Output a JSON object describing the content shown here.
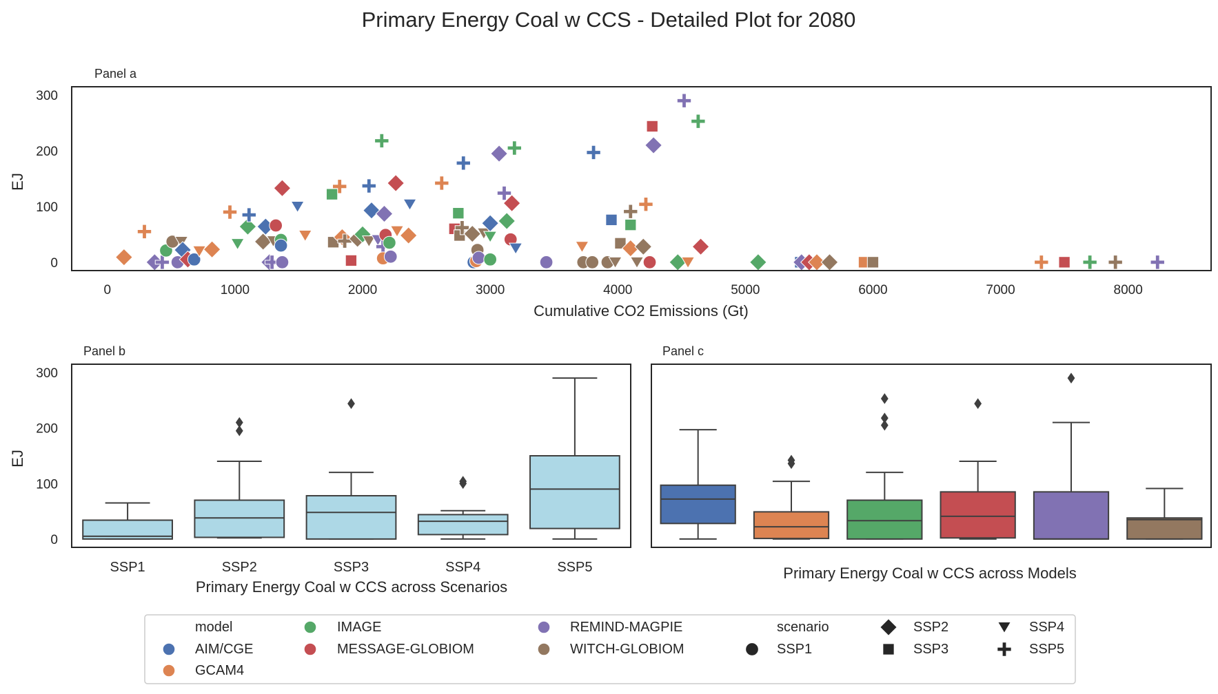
{
  "figure": {
    "title": "Primary Energy Coal w CCS - Detailed Plot for 2080"
  },
  "colors": {
    "AIM/CGE": "#4c72b0",
    "GCAM4": "#dd8452",
    "IMAGE": "#55a868",
    "MESSAGE-GLOBIOM": "#c44e52",
    "REMIND-MAGPIE": "#8172b3",
    "WITCH-GLOBIOM": "#937860",
    "scenario_box": "#add8e6"
  },
  "chart_data": [
    {
      "panel": "Panel a",
      "type": "scatter",
      "xlabel": "Cumulative CO2 Emissions (Gt)",
      "ylabel": "EJ",
      "xlim": [
        -280,
        8650
      ],
      "ylim": [
        -15,
        315
      ],
      "xticks": [
        0,
        1000,
        2000,
        3000,
        4000,
        5000,
        6000,
        7000,
        8000
      ],
      "yticks": [
        0,
        100,
        200,
        300
      ],
      "grid": false,
      "points": [
        {
          "x": 130,
          "y": 9,
          "model": "GCAM4",
          "scenario": "SSP2"
        },
        {
          "x": 290,
          "y": 55,
          "model": "GCAM4",
          "scenario": "SSP5"
        },
        {
          "x": 370,
          "y": 0,
          "model": "REMIND-MAGPIE",
          "scenario": "SSP2"
        },
        {
          "x": 430,
          "y": 0,
          "model": "REMIND-MAGPIE",
          "scenario": "SSP5"
        },
        {
          "x": 460,
          "y": 21,
          "model": "IMAGE",
          "scenario": "SSP1"
        },
        {
          "x": 510,
          "y": 37,
          "model": "WITCH-GLOBIOM",
          "scenario": "SSP1"
        },
        {
          "x": 550,
          "y": 0,
          "model": "REMIND-MAGPIE",
          "scenario": "SSP1"
        },
        {
          "x": 580,
          "y": 37,
          "model": "WITCH-GLOBIOM",
          "scenario": "SSP4"
        },
        {
          "x": 590,
          "y": 22,
          "model": "AIM/CGE",
          "scenario": "SSP2"
        },
        {
          "x": 630,
          "y": 5,
          "model": "MESSAGE-GLOBIOM",
          "scenario": "SSP2"
        },
        {
          "x": 680,
          "y": 5,
          "model": "AIM/CGE",
          "scenario": "SSP1"
        },
        {
          "x": 720,
          "y": 20,
          "model": "GCAM4",
          "scenario": "SSP4"
        },
        {
          "x": 820,
          "y": 23,
          "model": "GCAM4",
          "scenario": "SSP2"
        },
        {
          "x": 960,
          "y": 90,
          "model": "GCAM4",
          "scenario": "SSP5"
        },
        {
          "x": 1020,
          "y": 33,
          "model": "IMAGE",
          "scenario": "SSP4"
        },
        {
          "x": 1100,
          "y": 64,
          "model": "IMAGE",
          "scenario": "SSP2"
        },
        {
          "x": 1110,
          "y": 85,
          "model": "AIM/CGE",
          "scenario": "SSP5"
        },
        {
          "x": 1220,
          "y": 37,
          "model": "WITCH-GLOBIOM",
          "scenario": "SSP2"
        },
        {
          "x": 1240,
          "y": 64,
          "model": "AIM/CGE",
          "scenario": "SSP2"
        },
        {
          "x": 1270,
          "y": 0,
          "model": "REMIND-MAGPIE",
          "scenario": "SSP2"
        },
        {
          "x": 1290,
          "y": 0,
          "model": "REMIND-MAGPIE",
          "scenario": "SSP5"
        },
        {
          "x": 1300,
          "y": 38,
          "model": "WITCH-GLOBIOM",
          "scenario": "SSP4"
        },
        {
          "x": 1320,
          "y": 66,
          "model": "MESSAGE-GLOBIOM",
          "scenario": "SSP1"
        },
        {
          "x": 1360,
          "y": 40,
          "model": "IMAGE",
          "scenario": "SSP1"
        },
        {
          "x": 1360,
          "y": 30,
          "model": "AIM/CGE",
          "scenario": "SSP1"
        },
        {
          "x": 1370,
          "y": 0,
          "model": "REMIND-MAGPIE",
          "scenario": "SSP1"
        },
        {
          "x": 1370,
          "y": 133,
          "model": "MESSAGE-GLOBIOM",
          "scenario": "SSP2"
        },
        {
          "x": 1490,
          "y": 100,
          "model": "AIM/CGE",
          "scenario": "SSP4"
        },
        {
          "x": 1550,
          "y": 48,
          "model": "GCAM4",
          "scenario": "SSP4"
        },
        {
          "x": 1760,
          "y": 122,
          "model": "IMAGE",
          "scenario": "SSP3"
        },
        {
          "x": 1770,
          "y": 36,
          "model": "WITCH-GLOBIOM",
          "scenario": "SSP3"
        },
        {
          "x": 1820,
          "y": 136,
          "model": "GCAM4",
          "scenario": "SSP5"
        },
        {
          "x": 1840,
          "y": 45,
          "model": "GCAM4",
          "scenario": "SSP2"
        },
        {
          "x": 1860,
          "y": 38,
          "model": "WITCH-GLOBIOM",
          "scenario": "SSP5"
        },
        {
          "x": 1910,
          "y": 3,
          "model": "MESSAGE-GLOBIOM",
          "scenario": "SSP3"
        },
        {
          "x": 1960,
          "y": 42,
          "model": "WITCH-GLOBIOM",
          "scenario": "SSP2"
        },
        {
          "x": 2000,
          "y": 50,
          "model": "IMAGE",
          "scenario": "SSP2"
        },
        {
          "x": 2050,
          "y": 38,
          "model": "WITCH-GLOBIOM",
          "scenario": "SSP4"
        },
        {
          "x": 2050,
          "y": 137,
          "model": "AIM/CGE",
          "scenario": "SSP5"
        },
        {
          "x": 2070,
          "y": 93,
          "model": "AIM/CGE",
          "scenario": "SSP2"
        },
        {
          "x": 2120,
          "y": 40,
          "model": "REMIND-MAGPIE",
          "scenario": "SSP4"
        },
        {
          "x": 2150,
          "y": 218,
          "model": "IMAGE",
          "scenario": "SSP5"
        },
        {
          "x": 2160,
          "y": 28,
          "model": "REMIND-MAGPIE",
          "scenario": "SSP5"
        },
        {
          "x": 2160,
          "y": 7,
          "model": "GCAM4",
          "scenario": "SSP1"
        },
        {
          "x": 2170,
          "y": 87,
          "model": "REMIND-MAGPIE",
          "scenario": "SSP2"
        },
        {
          "x": 2180,
          "y": 49,
          "model": "MESSAGE-GLOBIOM",
          "scenario": "SSP1"
        },
        {
          "x": 2210,
          "y": 35,
          "model": "IMAGE",
          "scenario": "SSP1"
        },
        {
          "x": 2220,
          "y": 10,
          "model": "REMIND-MAGPIE",
          "scenario": "SSP1"
        },
        {
          "x": 2260,
          "y": 142,
          "model": "MESSAGE-GLOBIOM",
          "scenario": "SSP2"
        },
        {
          "x": 2270,
          "y": 56,
          "model": "GCAM4",
          "scenario": "SSP4"
        },
        {
          "x": 2360,
          "y": 48,
          "model": "GCAM4",
          "scenario": "SSP2"
        },
        {
          "x": 2370,
          "y": 104,
          "model": "AIM/CGE",
          "scenario": "SSP4"
        },
        {
          "x": 2620,
          "y": 142,
          "model": "GCAM4",
          "scenario": "SSP5"
        },
        {
          "x": 2720,
          "y": 60,
          "model": "MESSAGE-GLOBIOM",
          "scenario": "SSP3"
        },
        {
          "x": 2750,
          "y": 88,
          "model": "IMAGE",
          "scenario": "SSP3"
        },
        {
          "x": 2760,
          "y": 48,
          "model": "WITCH-GLOBIOM",
          "scenario": "SSP3"
        },
        {
          "x": 2780,
          "y": 62,
          "model": "WITCH-GLOBIOM",
          "scenario": "SSP5"
        },
        {
          "x": 2790,
          "y": 178,
          "model": "AIM/CGE",
          "scenario": "SSP5"
        },
        {
          "x": 2860,
          "y": 51,
          "model": "WITCH-GLOBIOM",
          "scenario": "SSP2"
        },
        {
          "x": 2870,
          "y": 0,
          "model": "AIM/CGE",
          "scenario": "SSP1"
        },
        {
          "x": 2890,
          "y": 2,
          "model": "GCAM4",
          "scenario": "SSP1"
        },
        {
          "x": 2900,
          "y": 22,
          "model": "WITCH-GLOBIOM",
          "scenario": "SSP1"
        },
        {
          "x": 2910,
          "y": 8,
          "model": "REMIND-MAGPIE",
          "scenario": "SSP1"
        },
        {
          "x": 2950,
          "y": 52,
          "model": "WITCH-GLOBIOM",
          "scenario": "SSP4"
        },
        {
          "x": 3000,
          "y": 70,
          "model": "AIM/CGE",
          "scenario": "SSP2"
        },
        {
          "x": 3000,
          "y": 5,
          "model": "IMAGE",
          "scenario": "SSP1"
        },
        {
          "x": 3000,
          "y": 46,
          "model": "IMAGE",
          "scenario": "SSP4"
        },
        {
          "x": 3070,
          "y": 195,
          "model": "REMIND-MAGPIE",
          "scenario": "SSP2"
        },
        {
          "x": 3110,
          "y": 124,
          "model": "REMIND-MAGPIE",
          "scenario": "SSP5"
        },
        {
          "x": 3130,
          "y": 74,
          "model": "IMAGE",
          "scenario": "SSP2"
        },
        {
          "x": 3160,
          "y": 41,
          "model": "MESSAGE-GLOBIOM",
          "scenario": "SSP1"
        },
        {
          "x": 3170,
          "y": 106,
          "model": "MESSAGE-GLOBIOM",
          "scenario": "SSP2"
        },
        {
          "x": 3190,
          "y": 205,
          "model": "IMAGE",
          "scenario": "SSP5"
        },
        {
          "x": 3200,
          "y": 25,
          "model": "AIM/CGE",
          "scenario": "SSP4"
        },
        {
          "x": 3440,
          "y": 0,
          "model": "REMIND-MAGPIE",
          "scenario": "SSP1"
        },
        {
          "x": 3720,
          "y": 28,
          "model": "GCAM4",
          "scenario": "SSP4"
        },
        {
          "x": 3730,
          "y": 0,
          "model": "WITCH-GLOBIOM",
          "scenario": "SSP1"
        },
        {
          "x": 3800,
          "y": 0,
          "model": "WITCH-GLOBIOM",
          "scenario": "SSP1"
        },
        {
          "x": 3810,
          "y": 197,
          "model": "AIM/CGE",
          "scenario": "SSP5"
        },
        {
          "x": 3920,
          "y": 0,
          "model": "WITCH-GLOBIOM",
          "scenario": "SSP1"
        },
        {
          "x": 3950,
          "y": 76,
          "model": "AIM/CGE",
          "scenario": "SSP3"
        },
        {
          "x": 3980,
          "y": 0,
          "model": "WITCH-GLOBIOM",
          "scenario": "SSP4"
        },
        {
          "x": 4020,
          "y": 34,
          "model": "WITCH-GLOBIOM",
          "scenario": "SSP3"
        },
        {
          "x": 4100,
          "y": 25,
          "model": "GCAM4",
          "scenario": "SSP2"
        },
        {
          "x": 4100,
          "y": 67,
          "model": "IMAGE",
          "scenario": "SSP3"
        },
        {
          "x": 4100,
          "y": 91,
          "model": "WITCH-GLOBIOM",
          "scenario": "SSP5"
        },
        {
          "x": 4150,
          "y": 0,
          "model": "WITCH-GLOBIOM",
          "scenario": "SSP4"
        },
        {
          "x": 4200,
          "y": 28,
          "model": "WITCH-GLOBIOM",
          "scenario": "SSP2"
        },
        {
          "x": 4220,
          "y": 104,
          "model": "GCAM4",
          "scenario": "SSP5"
        },
        {
          "x": 4250,
          "y": 0,
          "model": "MESSAGE-GLOBIOM",
          "scenario": "SSP1"
        },
        {
          "x": 4270,
          "y": 244,
          "model": "MESSAGE-GLOBIOM",
          "scenario": "SSP3"
        },
        {
          "x": 4280,
          "y": 210,
          "model": "REMIND-MAGPIE",
          "scenario": "SSP2"
        },
        {
          "x": 4470,
          "y": 0,
          "model": "IMAGE",
          "scenario": "SSP2"
        },
        {
          "x": 4520,
          "y": 290,
          "model": "REMIND-MAGPIE",
          "scenario": "SSP5"
        },
        {
          "x": 4550,
          "y": 0,
          "model": "GCAM4",
          "scenario": "SSP4"
        },
        {
          "x": 4630,
          "y": 253,
          "model": "IMAGE",
          "scenario": "SSP5"
        },
        {
          "x": 4650,
          "y": 28,
          "model": "MESSAGE-GLOBIOM",
          "scenario": "SSP2"
        },
        {
          "x": 5100,
          "y": 0,
          "model": "IMAGE",
          "scenario": "SSP2"
        },
        {
          "x": 5430,
          "y": 0,
          "model": "AIM/CGE",
          "scenario": "SSP3"
        },
        {
          "x": 5440,
          "y": 0,
          "model": "REMIND-MAGPIE",
          "scenario": "SSP2"
        },
        {
          "x": 5500,
          "y": 0,
          "model": "MESSAGE-GLOBIOM",
          "scenario": "SSP2"
        },
        {
          "x": 5560,
          "y": 0,
          "model": "GCAM4",
          "scenario": "SSP2"
        },
        {
          "x": 5660,
          "y": 0,
          "model": "WITCH-GLOBIOM",
          "scenario": "SSP2"
        },
        {
          "x": 5930,
          "y": 0,
          "model": "GCAM4",
          "scenario": "SSP3"
        },
        {
          "x": 6000,
          "y": 0,
          "model": "WITCH-GLOBIOM",
          "scenario": "SSP3"
        },
        {
          "x": 7320,
          "y": 0,
          "model": "GCAM4",
          "scenario": "SSP5"
        },
        {
          "x": 7500,
          "y": 0,
          "model": "MESSAGE-GLOBIOM",
          "scenario": "SSP3"
        },
        {
          "x": 7700,
          "y": 0,
          "model": "IMAGE",
          "scenario": "SSP5"
        },
        {
          "x": 7900,
          "y": 0,
          "model": "WITCH-GLOBIOM",
          "scenario": "SSP5"
        },
        {
          "x": 8230,
          "y": 0,
          "model": "REMIND-MAGPIE",
          "scenario": "SSP5"
        }
      ]
    },
    {
      "panel": "Panel b",
      "type": "box",
      "xlabel": "Primary Energy Coal w CCS across Scenarios",
      "ylabel": "EJ",
      "ylim": [
        -15,
        315
      ],
      "yticks": [
        0,
        100,
        200,
        300
      ],
      "categories": [
        "SSP1",
        "SSP2",
        "SSP3",
        "SSP4",
        "SSP5"
      ],
      "boxes": [
        {
          "whisker_low": 0,
          "q1": 0,
          "median": 5,
          "q3": 34,
          "whisker_high": 65,
          "outliers": []
        },
        {
          "whisker_low": 2,
          "q1": 3,
          "median": 38,
          "q3": 70,
          "whisker_high": 140,
          "outliers": [
            195,
            210
          ]
        },
        {
          "whisker_low": 0,
          "q1": 0,
          "median": 48,
          "q3": 78,
          "whisker_high": 120,
          "outliers": [
            244
          ]
        },
        {
          "whisker_low": 0,
          "q1": 8,
          "median": 32,
          "q3": 44,
          "whisker_high": 51,
          "outliers": [
            100,
            104
          ]
        },
        {
          "whisker_low": 0,
          "q1": 19,
          "median": 90,
          "q3": 150,
          "whisker_high": 290,
          "outliers": []
        }
      ],
      "box_color": "#add8e6"
    },
    {
      "panel": "Panel c",
      "type": "box",
      "xlabel": "Primary Energy Coal w CCS across Models",
      "ylim": [
        -15,
        315
      ],
      "categories": [
        "AIM/CGE",
        "GCAM4",
        "IMAGE",
        "MESSAGE-GLOBIOM",
        "REMIND-MAGPIE",
        "WITCH-GLOBIOM"
      ],
      "boxes": [
        {
          "whisker_low": 0,
          "q1": 28,
          "median": 72,
          "q3": 97,
          "whisker_high": 197,
          "outliers": []
        },
        {
          "whisker_low": 0,
          "q1": 1,
          "median": 22,
          "q3": 49,
          "whisker_high": 104,
          "outliers": [
            136,
            142
          ]
        },
        {
          "whisker_low": 0,
          "q1": 0,
          "median": 33,
          "q3": 70,
          "whisker_high": 120,
          "outliers": [
            205,
            218,
            253
          ]
        },
        {
          "whisker_low": 0,
          "q1": 2,
          "median": 41,
          "q3": 85,
          "whisker_high": 140,
          "outliers": [
            244
          ]
        },
        {
          "whisker_low": 0,
          "q1": 0,
          "median": 0,
          "q3": 85,
          "whisker_high": 210,
          "outliers": [
            290
          ]
        },
        {
          "whisker_low": 0,
          "q1": 0,
          "median": 35,
          "q3": 38,
          "whisker_high": 91,
          "outliers": []
        }
      ]
    }
  ],
  "legend": {
    "model_title": "model",
    "scenario_title": "scenario",
    "models": [
      "AIM/CGE",
      "GCAM4",
      "IMAGE",
      "MESSAGE-GLOBIOM",
      "REMIND-MAGPIE",
      "WITCH-GLOBIOM"
    ],
    "scenarios": [
      {
        "label": "SSP1",
        "marker": "circle"
      },
      {
        "label": "SSP2",
        "marker": "diamond"
      },
      {
        "label": "SSP3",
        "marker": "square"
      },
      {
        "label": "SSP4",
        "marker": "triangle-down"
      },
      {
        "label": "SSP5",
        "marker": "plus"
      }
    ],
    "placement": "bottom-center"
  }
}
